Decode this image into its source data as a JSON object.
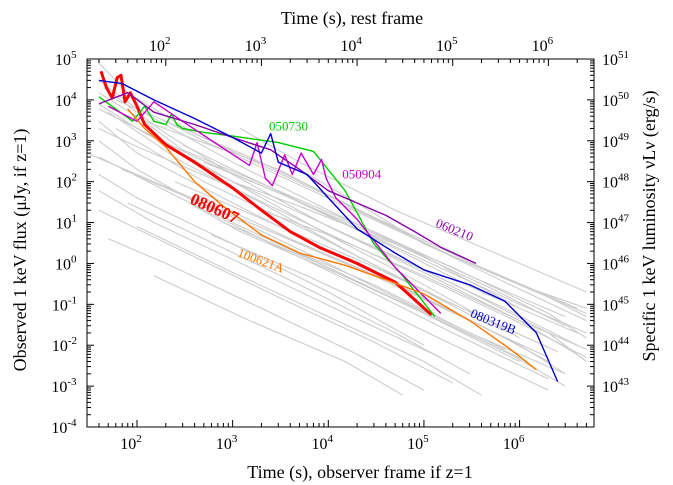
{
  "chart_data": {
    "type": "line",
    "title": "",
    "xlabel": "Time (s), observer frame if z=1",
    "xlabel_top": "Time (s), rest frame",
    "ylabel": "Observed 1 keV flux (μJy, if z=1)",
    "ylabel_right": "Specific 1 keV luminosity νLν (erg/s)",
    "x_scale": "log",
    "y_scale": "log",
    "xlim": [
      30,
      6000000
    ],
    "ylim": [
      0.0001,
      100000
    ],
    "x_ticks": [
      {
        "value": 100,
        "base": "10",
        "exp": "2"
      },
      {
        "value": 1000,
        "base": "10",
        "exp": "3"
      },
      {
        "value": 10000,
        "base": "10",
        "exp": "4"
      },
      {
        "value": 100000,
        "base": "10",
        "exp": "5"
      },
      {
        "value": 1000000,
        "base": "10",
        "exp": "6"
      }
    ],
    "x_top_ticks": [
      {
        "value": 100,
        "base": "10",
        "exp": "2"
      },
      {
        "value": 1000,
        "base": "10",
        "exp": "3"
      },
      {
        "value": 10000,
        "base": "10",
        "exp": "4"
      },
      {
        "value": 100000,
        "base": "10",
        "exp": "5"
      },
      {
        "value": 1000000,
        "base": "10",
        "exp": "6"
      }
    ],
    "y_ticks": [
      {
        "value": 100000,
        "base": "10",
        "exp": "5"
      },
      {
        "value": 10000,
        "base": "10",
        "exp": "4"
      },
      {
        "value": 1000,
        "base": "10",
        "exp": "3"
      },
      {
        "value": 100,
        "base": "10",
        "exp": "2"
      },
      {
        "value": 10,
        "base": "10",
        "exp": "1"
      },
      {
        "value": 1,
        "base": "10",
        "exp": "0"
      },
      {
        "value": 0.1,
        "base": "10",
        "exp": "-1"
      },
      {
        "value": 0.01,
        "base": "10",
        "exp": "-2"
      },
      {
        "value": 0.001,
        "base": "10",
        "exp": "-3"
      },
      {
        "value": 0.0001,
        "base": "10",
        "exp": "-4"
      }
    ],
    "y_right_ticks": [
      {
        "value": 100000,
        "base": "10",
        "exp": "51"
      },
      {
        "value": 10000,
        "base": "10",
        "exp": "50"
      },
      {
        "value": 1000,
        "base": "10",
        "exp": "49"
      },
      {
        "value": 100,
        "base": "10",
        "exp": "48"
      },
      {
        "value": 10,
        "base": "10",
        "exp": "47"
      },
      {
        "value": 1,
        "base": "10",
        "exp": "46"
      },
      {
        "value": 0.1,
        "base": "10",
        "exp": "45"
      },
      {
        "value": 0.01,
        "base": "10",
        "exp": "44"
      },
      {
        "value": 0.001,
        "base": "10",
        "exp": "43"
      }
    ],
    "grid": false,
    "legend": "none",
    "background_color": "#cccccc",
    "series": [
      {
        "name": "080607",
        "color": "#ff0000",
        "x": [
          42,
          48,
          55,
          62,
          68,
          75,
          85,
          100,
          120,
          200,
          400,
          1000,
          2000,
          4000,
          8000,
          20000,
          50000,
          120000
        ],
        "y": [
          50000,
          20000,
          11000,
          35000,
          40000,
          9000,
          15000,
          7000,
          2500,
          800,
          300,
          70,
          20,
          6,
          2.5,
          1,
          0.35,
          0.055
        ]
      },
      {
        "name": "050730",
        "color": "#00cc00",
        "x": [
          40,
          60,
          90,
          120,
          150,
          200,
          230,
          260,
          300,
          500,
          1000,
          3000,
          7000,
          15000,
          30000,
          60000,
          130000
        ],
        "y": [
          12000,
          6000,
          3000,
          7000,
          3000,
          2500,
          4500,
          2500,
          2000,
          1600,
          1300,
          900,
          550,
          60,
          3,
          0.5,
          0.05
        ]
      },
      {
        "name": "050904",
        "color": "#cc00cc",
        "x": [
          50,
          100,
          150,
          300,
          700,
          1500,
          1800,
          2200,
          2600,
          3500,
          4200,
          5200,
          7000,
          8500,
          9500,
          12000,
          20000,
          50000,
          150000
        ],
        "y": [
          7000,
          3000,
          9000,
          3000,
          800,
          250,
          900,
          120,
          80,
          450,
          150,
          500,
          150,
          350,
          120,
          40,
          12,
          0.8,
          0.06
        ]
      },
      {
        "name": "060210",
        "color": "#8800aa",
        "x": [
          40,
          80,
          150,
          400,
          1000,
          2500,
          5000,
          10000,
          20000,
          40000,
          80000,
          150000,
          350000
        ],
        "y": [
          8000,
          15000,
          5000,
          2500,
          1200,
          600,
          200,
          60,
          30,
          15,
          6,
          2.5,
          1
        ]
      },
      {
        "name": "080319B",
        "color": "#0000cc",
        "x": [
          40,
          70,
          150,
          400,
          1000,
          2000,
          2500,
          3000,
          6000,
          10000,
          20000,
          50000,
          100000,
          300000,
          700000,
          1500000,
          2500000
        ],
        "y": [
          30000,
          25000,
          10000,
          3500,
          1200,
          500,
          1500,
          300,
          150,
          40,
          7,
          1.8,
          0.7,
          0.3,
          0.12,
          0.02,
          0.0013
        ]
      },
      {
        "name": "100621A",
        "color": "#ff7700",
        "x": [
          80,
          120,
          200,
          400,
          800,
          2000,
          5000,
          15000,
          40000,
          100000,
          300000,
          800000,
          1500000
        ],
        "y": [
          6000,
          2000,
          700,
          100,
          25,
          5,
          1.8,
          0.9,
          0.4,
          0.18,
          0.04,
          0.008,
          0.0025
        ]
      }
    ],
    "background_series": [
      [
        [
          40,
          30000
        ],
        [
          100,
          6000
        ],
        [
          1000,
          300
        ],
        [
          10000,
          20
        ],
        [
          100000,
          1.5
        ],
        [
          1000000,
          0.08
        ]
      ],
      [
        [
          45,
          20000
        ],
        [
          200,
          1500
        ],
        [
          1000,
          150
        ],
        [
          10000,
          8
        ],
        [
          100000,
          0.6
        ],
        [
          1000000,
          0.04
        ],
        [
          4000000,
          0.006
        ]
      ],
      [
        [
          40,
          8000
        ],
        [
          100,
          2000
        ],
        [
          1000,
          100
        ],
        [
          10000,
          5
        ],
        [
          100000,
          0.3
        ],
        [
          1000000,
          0.015
        ]
      ],
      [
        [
          50,
          5000
        ],
        [
          300,
          300
        ],
        [
          2000,
          30
        ],
        [
          20000,
          1.5
        ],
        [
          200000,
          0.1
        ]
      ],
      [
        [
          40,
          3000
        ],
        [
          100,
          500
        ],
        [
          1000,
          30
        ],
        [
          10000,
          2
        ],
        [
          100000,
          0.15
        ],
        [
          1000000,
          0.01
        ],
        [
          3000000,
          0.002
        ]
      ],
      [
        [
          60,
          2000
        ],
        [
          500,
          100
        ],
        [
          5000,
          8
        ],
        [
          50000,
          0.5
        ],
        [
          500000,
          0.03
        ]
      ],
      [
        [
          40,
          1000
        ],
        [
          100,
          200
        ],
        [
          1000,
          10
        ],
        [
          10000,
          0.8
        ],
        [
          100000,
          0.06
        ],
        [
          1000000,
          0.004
        ]
      ],
      [
        [
          40,
          400
        ],
        [
          200,
          60
        ],
        [
          2000,
          4
        ],
        [
          20000,
          0.3
        ],
        [
          200000,
          0.02
        ],
        [
          2000000,
          0.0015
        ]
      ],
      [
        [
          40,
          150
        ],
        [
          100,
          40
        ],
        [
          1000,
          3
        ],
        [
          10000,
          0.2
        ],
        [
          100000,
          0.01
        ]
      ],
      [
        [
          80,
          30
        ],
        [
          500,
          4
        ],
        [
          5000,
          0.3
        ],
        [
          50000,
          0.02
        ],
        [
          300000,
          0.002
        ]
      ],
      [
        [
          40,
          60
        ],
        [
          150,
          10
        ],
        [
          1500,
          0.8
        ],
        [
          15000,
          0.06
        ],
        [
          150000,
          0.005
        ]
      ],
      [
        [
          100,
          8
        ],
        [
          1000,
          0.6
        ],
        [
          10000,
          0.05
        ],
        [
          100000,
          0.004
        ],
        [
          400000,
          0.0006
        ]
      ],
      [
        [
          40,
          20
        ],
        [
          300,
          2
        ],
        [
          3000,
          0.15
        ],
        [
          30000,
          0.012
        ],
        [
          200000,
          0.0012
        ]
      ],
      [
        [
          50,
          4
        ],
        [
          200,
          1
        ],
        [
          2000,
          0.08
        ],
        [
          20000,
          0.006
        ],
        [
          100000,
          0.0008
        ]
      ],
      [
        [
          200,
          3000
        ],
        [
          600,
          800
        ],
        [
          3000,
          200
        ],
        [
          20000,
          20
        ],
        [
          200000,
          1.5
        ],
        [
          2000000,
          0.15
        ],
        [
          5000000,
          0.05
        ]
      ],
      [
        [
          300,
          800
        ],
        [
          1000,
          200
        ],
        [
          10000,
          15
        ],
        [
          100000,
          1.2
        ],
        [
          1000000,
          0.1
        ],
        [
          5000000,
          0.02
        ]
      ],
      [
        [
          100,
          4000
        ],
        [
          300,
          600
        ],
        [
          3000,
          60
        ],
        [
          30000,
          6
        ],
        [
          300000,
          0.5
        ],
        [
          3000000,
          0.05
        ]
      ],
      [
        [
          500,
          300
        ],
        [
          2000,
          80
        ],
        [
          20000,
          8
        ],
        [
          200000,
          0.8
        ],
        [
          2000000,
          0.06
        ],
        [
          5000000,
          0.015
        ]
      ],
      [
        [
          150,
          1200
        ],
        [
          700,
          150
        ],
        [
          7000,
          12
        ],
        [
          70000,
          1
        ],
        [
          700000,
          0.08
        ],
        [
          4000000,
          0.01
        ]
      ],
      [
        [
          1000,
          100
        ],
        [
          5000,
          25
        ],
        [
          50000,
          3
        ],
        [
          500000,
          0.25
        ],
        [
          3000000,
          0.03
        ]
      ],
      [
        [
          2000,
          20
        ],
        [
          10000,
          5
        ],
        [
          100000,
          0.5
        ],
        [
          1000000,
          0.04
        ],
        [
          5000000,
          0.008
        ]
      ],
      [
        [
          60,
          10000
        ],
        [
          150,
          4000
        ],
        [
          1500,
          400
        ],
        [
          15000,
          30
        ],
        [
          150000,
          2
        ],
        [
          1500000,
          0.2
        ],
        [
          5000000,
          0.06
        ]
      ],
      [
        [
          400,
          50
        ],
        [
          4000,
          4
        ],
        [
          40000,
          0.4
        ],
        [
          400000,
          0.03
        ],
        [
          2000000,
          0.004
        ]
      ],
      [
        [
          800,
          10
        ],
        [
          8000,
          1
        ],
        [
          80000,
          0.08
        ],
        [
          800000,
          0.006
        ],
        [
          3000000,
          0.001
        ]
      ],
      [
        [
          40,
          15000
        ],
        [
          120,
          3000
        ],
        [
          800,
          600
        ],
        [
          8000,
          50
        ],
        [
          80000,
          4
        ],
        [
          800000,
          0.3
        ],
        [
          5000000,
          0.04
        ]
      ],
      [
        [
          3000,
          3
        ],
        [
          30000,
          0.3
        ],
        [
          300000,
          0.02
        ],
        [
          3000000,
          0.002
        ]
      ],
      [
        [
          40,
          6000
        ],
        [
          400,
          400
        ],
        [
          4000,
          40
        ],
        [
          40000,
          3
        ],
        [
          400000,
          0.2
        ],
        [
          4000000,
          0.02
        ]
      ],
      [
        [
          70,
          200
        ],
        [
          700,
          20
        ],
        [
          7000,
          1.5
        ],
        [
          70000,
          0.1
        ],
        [
          700000,
          0.008
        ]
      ],
      [
        [
          30,
          500
        ],
        [
          300,
          50
        ],
        [
          3000,
          5
        ],
        [
          30000,
          0.5
        ],
        [
          300000,
          0.04
        ],
        [
          2000000,
          0.005
        ]
      ],
      [
        [
          250,
          100
        ],
        [
          2500,
          10
        ],
        [
          25000,
          1
        ],
        [
          250000,
          0.08
        ],
        [
          2500000,
          0.007
        ]
      ],
      [
        [
          5000,
          200
        ],
        [
          20000,
          30
        ],
        [
          100000,
          3
        ],
        [
          1000000,
          0.3
        ],
        [
          5000000,
          0.08
        ]
      ],
      [
        [
          1200,
          2000
        ],
        [
          5000,
          300
        ],
        [
          50000,
          20
        ],
        [
          500000,
          2
        ],
        [
          5000000,
          0.2
        ]
      ],
      [
        [
          40,
          2000
        ],
        [
          90,
          800
        ],
        [
          900,
          80
        ],
        [
          9000,
          6
        ],
        [
          90000,
          0.5
        ],
        [
          900000,
          0.04
        ],
        [
          5000000,
          0.005
        ]
      ],
      [
        [
          150,
          0.5
        ],
        [
          1500,
          0.04
        ],
        [
          15000,
          0.004
        ],
        [
          60000,
          0.0006
        ]
      ],
      [
        [
          600,
          5
        ],
        [
          6000,
          0.5
        ],
        [
          60000,
          0.04
        ],
        [
          600000,
          0.003
        ],
        [
          2000000,
          0.0008
        ]
      ],
      [
        [
          40,
          80000
        ],
        [
          80,
          15000
        ],
        [
          400,
          1500
        ],
        [
          4000,
          120
        ],
        [
          40000,
          10
        ],
        [
          400000,
          0.8
        ],
        [
          4000000,
          0.08
        ]
      ],
      [
        [
          10000,
          8
        ],
        [
          50000,
          1.5
        ],
        [
          300000,
          0.2
        ],
        [
          2000000,
          0.02
        ],
        [
          5000000,
          0.004
        ]
      ],
      [
        [
          350,
          30
        ],
        [
          1200,
          6
        ],
        [
          12000,
          0.6
        ],
        [
          120000,
          0.05
        ],
        [
          1200000,
          0.004
        ]
      ]
    ],
    "annotations": [
      {
        "text": "050730",
        "color": "#00cc00",
        "x": 2400,
        "y": 1800,
        "rotate": 0,
        "size": 13,
        "bold": false
      },
      {
        "text": "050904",
        "color": "#cc00cc",
        "x": 14000,
        "y": 120,
        "rotate": 0,
        "size": 13,
        "bold": false
      },
      {
        "text": "080607",
        "color": "#ff0000",
        "x": 350,
        "y": 30,
        "rotate": 24,
        "size": 17,
        "bold": true
      },
      {
        "text": "060210",
        "color": "#8800aa",
        "x": 130000,
        "y": 8,
        "rotate": 22,
        "size": 13,
        "bold": false
      },
      {
        "text": "100621A",
        "color": "#ff7700",
        "x": 1100,
        "y": 1.5,
        "rotate": 20,
        "size": 13,
        "bold": false
      },
      {
        "text": "080319B",
        "color": "#0000cc",
        "x": 300000,
        "y": 0.05,
        "rotate": 22,
        "size": 13,
        "bold": false
      }
    ]
  }
}
